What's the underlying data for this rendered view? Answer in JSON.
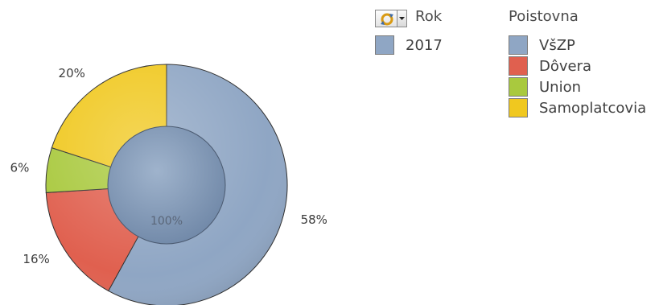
{
  "chart_data": {
    "type": "pie",
    "categories": [
      "VšZP",
      "Dôvera",
      "Union",
      "Samoplatcovia"
    ],
    "values": [
      58,
      16,
      6,
      20
    ],
    "value_labels": [
      "58%",
      "16%",
      "6%",
      "20%"
    ],
    "colors": [
      "#8FA6C4",
      "#E0604F",
      "#A9C93E",
      "#F0C81F"
    ],
    "center_label": "100%",
    "center_color": "#7F96B4",
    "legend_placement": "right"
  },
  "legend": {
    "year": {
      "title": "Rok",
      "items": [
        {
          "label": "2017",
          "color": "#8FA6C4"
        }
      ]
    },
    "insurer": {
      "title": "Poistovna",
      "items": [
        {
          "label": "VšZP",
          "color": "#8FA6C4"
        },
        {
          "label": "Dôvera",
          "color": "#E0604F"
        },
        {
          "label": "Union",
          "color": "#A9C93E"
        },
        {
          "label": "Samoplatcovia",
          "color": "#F0C81F"
        }
      ]
    }
  },
  "icons": {
    "cycle": "cycle-arrows-icon",
    "dropdown": "dropdown-arrow-icon"
  }
}
